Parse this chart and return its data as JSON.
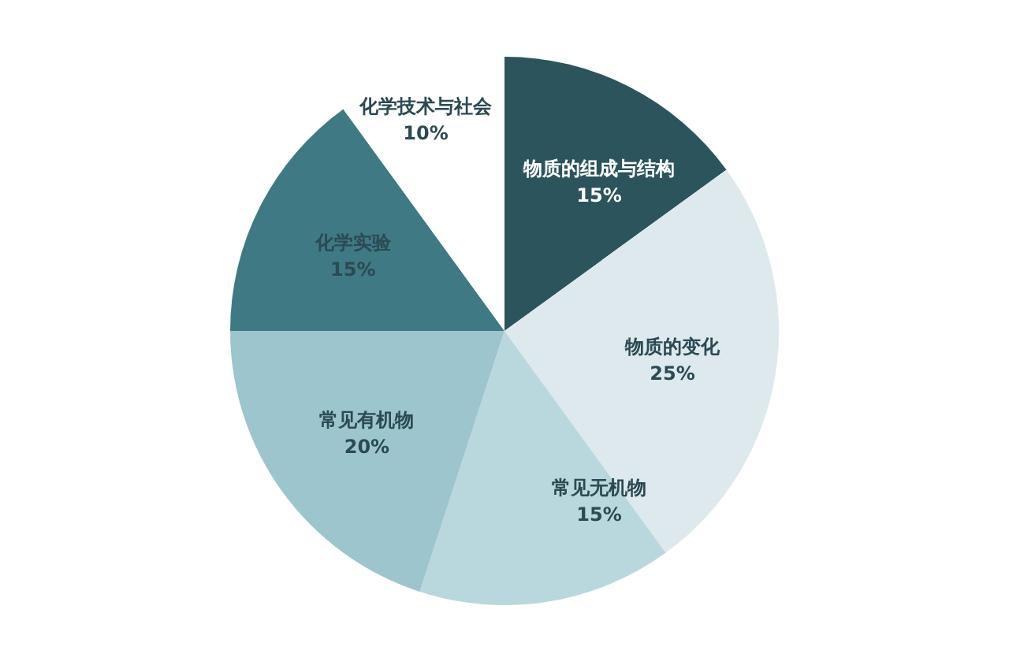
{
  "chart_data": {
    "type": "pie",
    "categories": [
      "物质的组成与结构",
      "物质的变化",
      "常见无机物",
      "常见有机物",
      "化学实验",
      "化学技术与社会"
    ],
    "values": [
      15,
      25,
      15,
      20,
      15,
      10
    ],
    "colors": [
      "#2b545c",
      "#dde9ed",
      "#b9d8dd",
      "#9dc5cd",
      "#3f7a84",
      "#ffffff"
    ],
    "value_labels": [
      "15%",
      "25%",
      "15%",
      "20%",
      "15%",
      "10%"
    ]
  }
}
